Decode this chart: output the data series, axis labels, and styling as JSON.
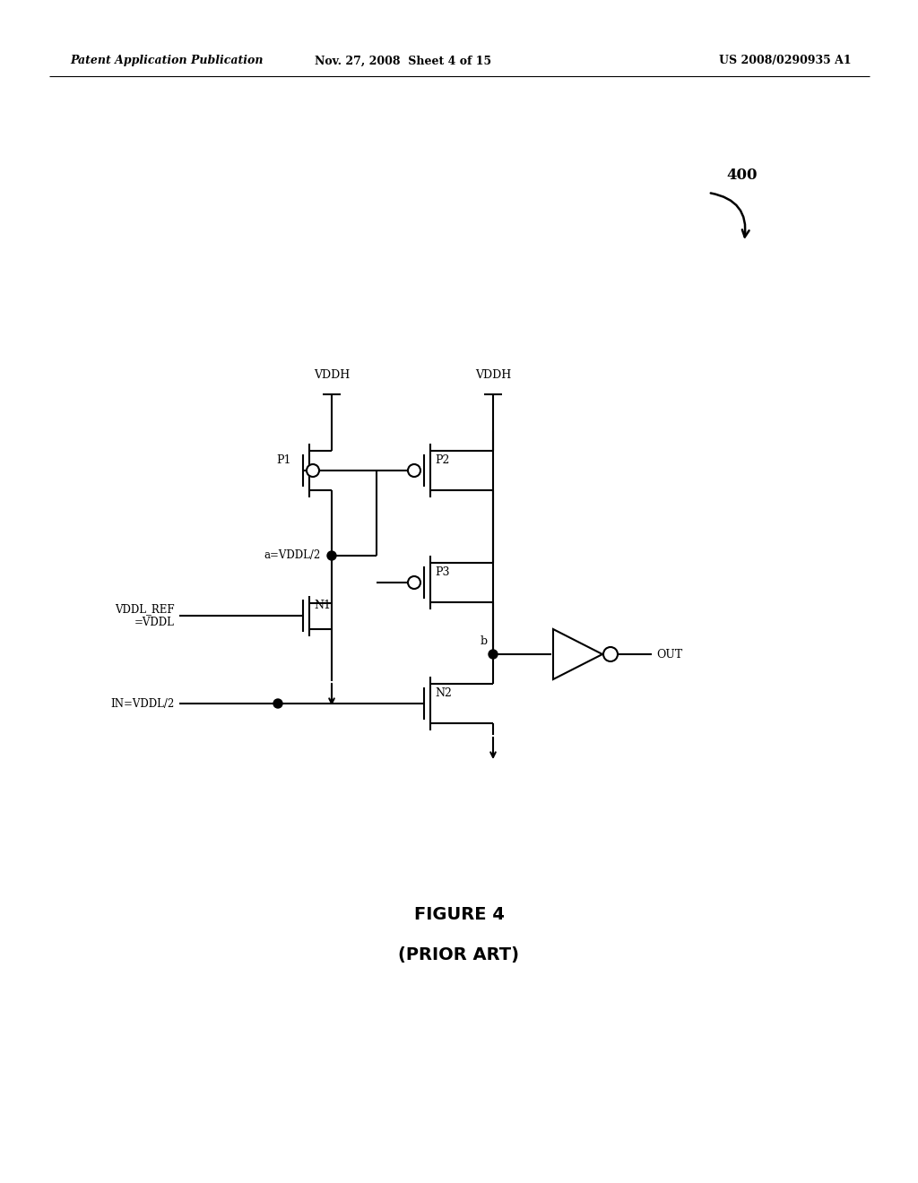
{
  "bg_color": "#ffffff",
  "header_left": "Patent Application Publication",
  "header_mid": "Nov. 27, 2008  Sheet 4 of 15",
  "header_right": "US 2008/0290935 A1",
  "figure_label": "FIGURE 4",
  "figure_sublabel": "(PRIOR ART)",
  "ref_number": "400",
  "vddh_label1": "VDDH",
  "vddh_label2": "VDDH",
  "p1_label": "P1",
  "p2_label": "P2",
  "p3_label": "P3",
  "n1_label": "N1",
  "n2_label": "N2",
  "a_label": "a=VDDL/2",
  "b_label": "b",
  "vddl_ref_label": "VDDL_REF\n=VDDL",
  "in_label": "IN=VDDL/2",
  "out_label": "OUT",
  "lw": 1.5,
  "fs_header": 9,
  "fs_circuit": 9,
  "fs_figure": 14
}
